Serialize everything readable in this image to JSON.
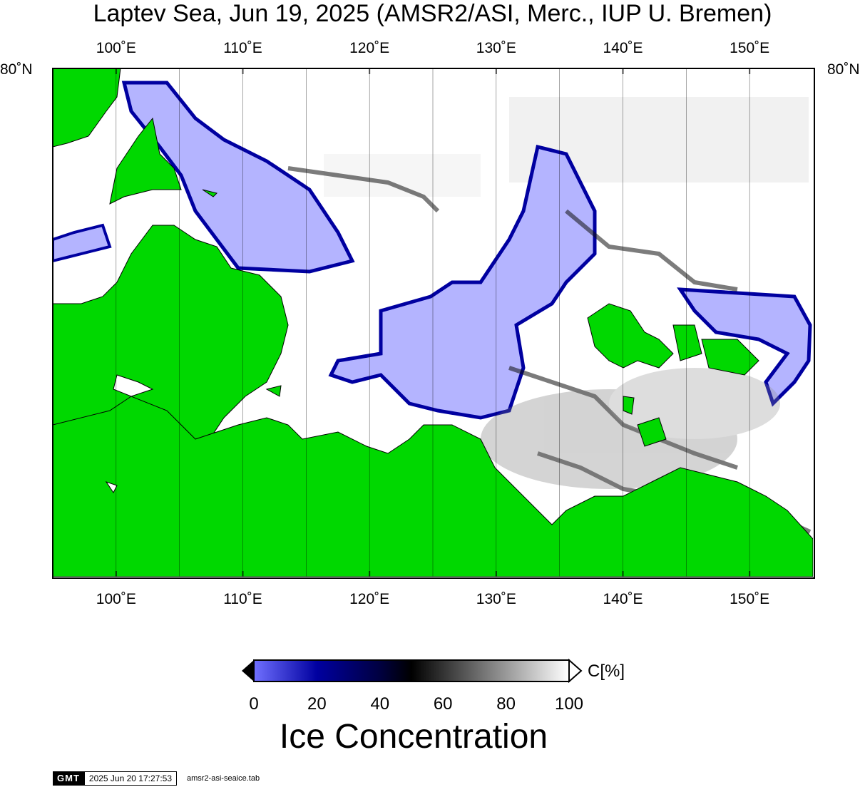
{
  "title": "Laptev Sea, Jun 19, 2025 (AMSR2/ASI, Merc., IUP U. Bremen)",
  "map": {
    "projection": "Mercator",
    "lon_range": [
      95,
      155
    ],
    "land_color": "#00d800",
    "low_ice_color": "#b4b4ff",
    "open_water_color": "#ffffff",
    "top_lon_labels": [
      "100˚E",
      "110˚E",
      "120˚E",
      "130˚E",
      "140˚E",
      "150˚E"
    ],
    "bottom_lon_labels": [
      "100˚E",
      "110˚E",
      "120˚E",
      "130˚E",
      "140˚E",
      "150˚E"
    ],
    "lat_label_left": "80˚N",
    "lat_label_right": "80˚N",
    "meridians": [
      100,
      105,
      110,
      115,
      120,
      125,
      130,
      135,
      140,
      145,
      150
    ]
  },
  "colorbar": {
    "tick_labels": [
      "0",
      "20",
      "40",
      "60",
      "80",
      "100"
    ],
    "unit": "C[%]",
    "title": "Ice Concentration",
    "range": [
      0,
      100
    ],
    "stops": [
      {
        "value": 0,
        "color": "#7070ff"
      },
      {
        "value": 20,
        "color": "#0000a0"
      },
      {
        "value": 40,
        "color": "#000040"
      },
      {
        "value": 50,
        "color": "#000000"
      },
      {
        "value": 100,
        "color": "#ffffff"
      }
    ]
  },
  "footer": {
    "logo": "GMT",
    "timestamp": "2025 Jun 20 17:27:53",
    "file": "amsr2-asi-seaice.tab"
  }
}
